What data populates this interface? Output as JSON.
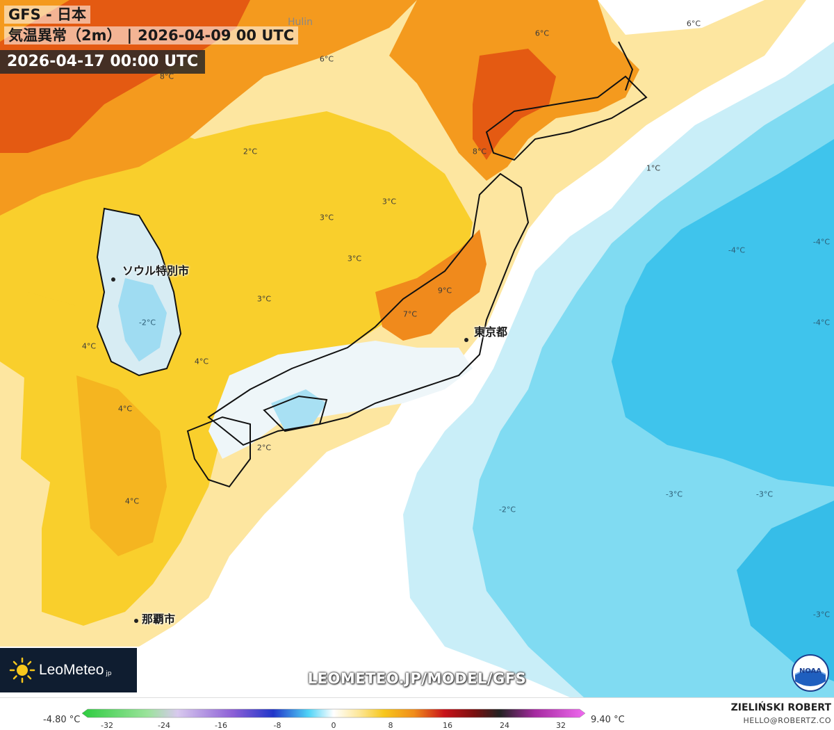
{
  "header": {
    "title": "GFS - 日本",
    "variable": "気温異常（2m）",
    "run_time": "2026-04-09 00 UTC",
    "valid_time": "2026-04-17 00:00 UTC"
  },
  "map": {
    "place_labels": {
      "hulin": "Hulin"
    },
    "cities": {
      "seoul": "ソウル特別市",
      "tokyo": "東京都",
      "naha": "那覇市"
    },
    "temperature_labels": [
      "8°C",
      "6°C",
      "6°C",
      "6°C",
      "2°C",
      "8°C",
      "1°C",
      "3°C",
      "3°C",
      "3°C",
      "3°C",
      "9°C",
      "7°C",
      "-2°C",
      "4°C",
      "4°C",
      "4°C",
      "2°C",
      "4°C",
      "-4°C",
      "-4°C",
      "-4°C",
      "-3°C",
      "-3°C",
      "-2°C",
      "-3°C"
    ]
  },
  "branding": {
    "brand_name": "LeoMeteo",
    "brand_suffix": "jp",
    "site_url": "LEOMETEO.JP/MODEL/GFS",
    "noaa_text": "NOAA",
    "author": "ZIELIŃSKI ROBERT",
    "email": "HELLO@ROBERTZ.CO"
  },
  "legend": {
    "min_label": "-4.80 °C",
    "max_label": "9.40 °C",
    "ticks": [
      "-32",
      "-24",
      "-16",
      "-8",
      "0",
      "8",
      "16",
      "24",
      "32"
    ],
    "colors": {
      "cold_deep": "#2ecc40",
      "cold_mid": "#b78ce0",
      "cold_blue": "#1a4fd6",
      "cold_light": "#4fd3f7",
      "neutral": "#ffffff",
      "warm_light": "#fde79a",
      "warm_yellow": "#f7c71c",
      "warm_orange": "#f08c1a",
      "warm_red": "#c8131a",
      "warm_dark": "#222222",
      "warm_magenta": "#e83ad8"
    }
  }
}
